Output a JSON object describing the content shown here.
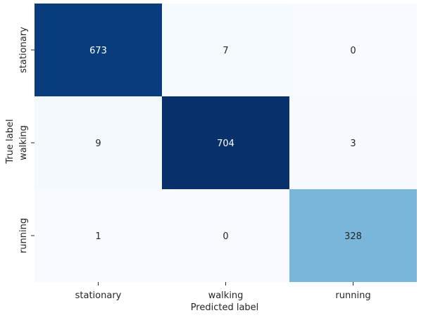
{
  "chart_data": {
    "type": "heatmap",
    "xlabel": "Predicted label",
    "ylabel": "True label",
    "x_categories": [
      "stationary",
      "walking",
      "running"
    ],
    "y_categories": [
      "stationary",
      "walking",
      "running"
    ],
    "values": [
      [
        673,
        7,
        0
      ],
      [
        9,
        704,
        3
      ],
      [
        1,
        0,
        328
      ]
    ],
    "colormap": "Blues",
    "value_range": [
      0,
      704
    ],
    "colorbar": false,
    "grid": false,
    "annotations": true
  }
}
